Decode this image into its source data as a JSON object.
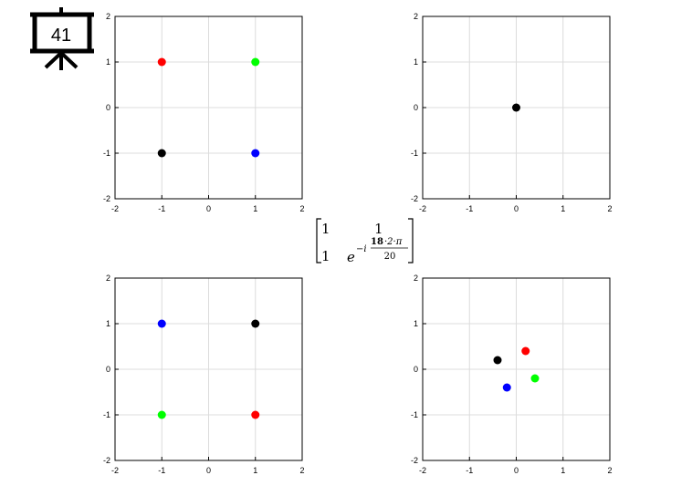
{
  "slide": {
    "number": "41"
  },
  "matrix": {
    "r1c1": "1",
    "r1c2": "1",
    "r2c1": "1",
    "base": "e",
    "exp_prefix": "−i",
    "exp_highlight": "18",
    "exp_rest": "·2·π",
    "exp_denominator": "20",
    "highlight_color": "#ff0000"
  },
  "colors": {
    "red": "#ff0000",
    "green": "#00ff00",
    "blue": "#0000ff",
    "black": "#000000"
  },
  "chart_data": [
    {
      "type": "scatter",
      "xlim": [
        -2,
        2
      ],
      "ylim": [
        -2,
        2
      ],
      "xticks": [
        "-2",
        "-1",
        "0",
        "1",
        "2"
      ],
      "yticks": [
        "2",
        "1",
        "0",
        "-1",
        "-2"
      ],
      "grid": true,
      "points": [
        {
          "x": -1,
          "y": 1,
          "color": "#ff0000"
        },
        {
          "x": 1,
          "y": 1,
          "color": "#00ff00"
        },
        {
          "x": -1,
          "y": -1,
          "color": "#000000"
        },
        {
          "x": 1,
          "y": -1,
          "color": "#0000ff"
        }
      ]
    },
    {
      "type": "scatter",
      "xlim": [
        -2,
        2
      ],
      "ylim": [
        -2,
        2
      ],
      "xticks": [
        "-2",
        "-1",
        "0",
        "1",
        "2"
      ],
      "yticks": [
        "2",
        "1",
        "0",
        "-1",
        "-2"
      ],
      "grid": true,
      "points": [
        {
          "x": 0,
          "y": 0,
          "color": "#000000"
        }
      ]
    },
    {
      "type": "scatter",
      "xlim": [
        -2,
        2
      ],
      "ylim": [
        -2,
        2
      ],
      "xticks": [
        "-2",
        "-1",
        "0",
        "1",
        "2"
      ],
      "yticks": [
        "2",
        "1",
        "0",
        "-1",
        "-2"
      ],
      "grid": true,
      "points": [
        {
          "x": -1,
          "y": 1,
          "color": "#0000ff"
        },
        {
          "x": 1,
          "y": 1,
          "color": "#000000"
        },
        {
          "x": -1,
          "y": -1,
          "color": "#00ff00"
        },
        {
          "x": 1,
          "y": -1,
          "color": "#ff0000"
        }
      ]
    },
    {
      "type": "scatter",
      "xlim": [
        -2,
        2
      ],
      "ylim": [
        -2,
        2
      ],
      "xticks": [
        "-2",
        "-1",
        "0",
        "1",
        "2"
      ],
      "yticks": [
        "2",
        "1",
        "0",
        "-1",
        "-2"
      ],
      "grid": true,
      "points": [
        {
          "x": 0.2,
          "y": 0.4,
          "color": "#ff0000"
        },
        {
          "x": -0.4,
          "y": 0.2,
          "color": "#000000"
        },
        {
          "x": 0.4,
          "y": -0.2,
          "color": "#00ff00"
        },
        {
          "x": -0.2,
          "y": -0.4,
          "color": "#0000ff"
        }
      ]
    }
  ]
}
